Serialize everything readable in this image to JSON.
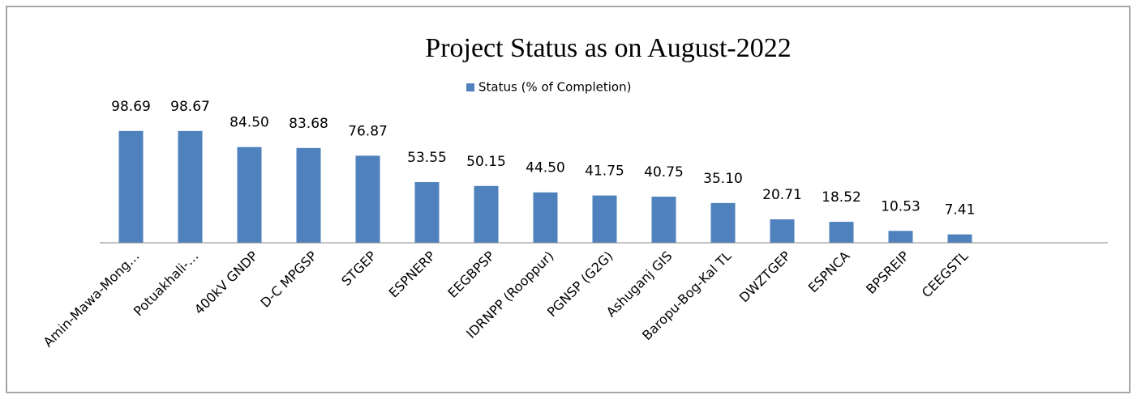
{
  "chart_data": {
    "type": "bar",
    "title": "Project Status as on August-2022",
    "legend": "Status (% of Completion)",
    "legend_position": "top",
    "color": "#4f81bd",
    "categories": [
      "Amin-Mawa-Mong…",
      "Potuakhali-…",
      "400kV GNDP",
      "D-C MPGSP",
      "STGEP",
      "ESPNERP",
      "EEGBPSP",
      "IDRNPP (Rooppur)",
      "PGNSP (G2G)",
      "Ashuganj  GIS",
      "Baropu-Bog-Kal  TL",
      "DWZTGEP",
      "ESPNCA",
      "BPSREIP",
      "CEEGSTL"
    ],
    "values": [
      98.69,
      98.67,
      84.5,
      83.68,
      76.87,
      53.55,
      50.15,
      44.5,
      41.75,
      40.75,
      35.1,
      20.71,
      18.52,
      10.53,
      7.41
    ],
    "value_labels": [
      "98.69",
      "98.67",
      "84.50",
      "83.68",
      "76.87",
      "53.55",
      "50.15",
      "44.50",
      "41.75",
      "40.75",
      "35.10",
      "20.71",
      "18.52",
      "10.53",
      "7.41"
    ],
    "ylim": [
      0,
      120
    ]
  }
}
